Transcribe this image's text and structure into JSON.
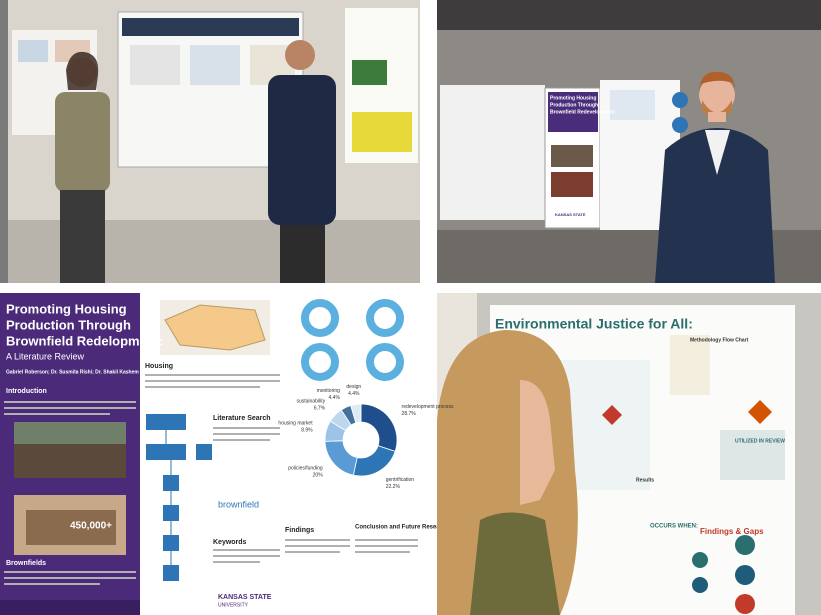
{
  "top_right": {
    "poster_title_lines": [
      "Promoting Housing",
      "Production Through",
      "Brownfield Redevelopment:"
    ],
    "logo": "KANSAS STATE"
  },
  "poster": {
    "title_lines": [
      "Promoting Housing",
      "Production Through",
      "Brownfield Redelopment:"
    ],
    "subtitle": "A Literature Review",
    "authors": "Gabriel Roberson; Dr. Susmita Rishi; Dr. Shakil Kashem",
    "sections": {
      "introduction": "Introduction",
      "brownfields": "Brownfields",
      "housing": "Housing",
      "literature_search": "Literature Search",
      "keywords": "Keywords",
      "findings": "Findings",
      "conclusion": "Conclusion and Future Research"
    },
    "image_caption": "450,000+",
    "wordcloud": "brownfield",
    "logo": "KANSAS STATE",
    "logo_sub": "UNIVERSITY",
    "donut": {
      "labels": [
        "redevelopment process",
        "gentrification",
        "policies/funding",
        "housing market",
        "sustainability",
        "monitoring",
        "design"
      ],
      "values": [
        28.7,
        22.2,
        20,
        8.9,
        6.7,
        4.4,
        4.4
      ],
      "value_labels": [
        "28.7%",
        "22.2%",
        "20%",
        "8.9%",
        "6.7%",
        "4.4%",
        "4.4%"
      ],
      "colors": [
        "#1f4e8c",
        "#2e75b6",
        "#5b9bd5",
        "#9dc3e6",
        "#bdd7ee",
        "#41719c",
        "#deebf7"
      ]
    }
  },
  "bottom_right": {
    "title": "Environmental Justice for All:",
    "flow_title": "Methodology Flow Chart",
    "utilized": "UTILIZED IN REVIEW",
    "results": "Results",
    "findings": "Findings & Gaps",
    "occurs": "OCCURS WHEN:"
  }
}
